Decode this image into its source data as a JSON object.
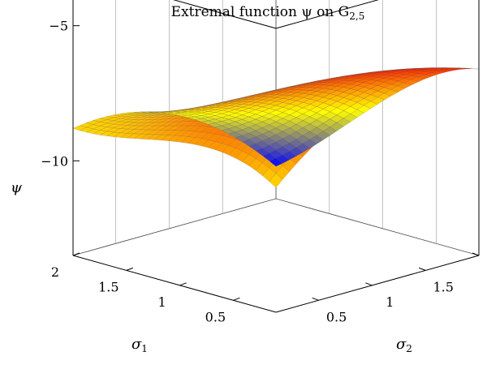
{
  "title": "Extremal function ψ on G",
  "title_sub": "2,5",
  "chart_data": {
    "type": "surface",
    "title": "Extremal function ψ on G₂,₅",
    "xlabel": "σ",
    "xlabel_sub": "1",
    "ylabel": "σ",
    "ylabel_sub": "2",
    "zlabel": "ψ",
    "xlim": [
      0.1,
      2
    ],
    "ylim": [
      0.1,
      2
    ],
    "zlim": [
      -13.5,
      -3
    ],
    "x_ticks": [
      "0.5",
      "1",
      "1.5",
      "2"
    ],
    "y_ticks": [
      "0.5",
      "1",
      "1.5",
      "2"
    ],
    "z_ticks": [
      "−10",
      "−5"
    ],
    "colormap": [
      "#0000ff",
      "#ffff00",
      "#ff0000"
    ],
    "grid": "x",
    "corner_values": [
      {
        "x": 0.1,
        "y": 0.1,
        "z": -9.2
      },
      {
        "x": 0.5,
        "y": 0.1,
        "z": -5.8
      },
      {
        "x": 2.0,
        "y": 0.1,
        "z": -12.2
      },
      {
        "x": 0.1,
        "y": 2.0,
        "z": -5.4
      },
      {
        "x": 2.0,
        "y": 2.0,
        "z": -13.0
      }
    ]
  }
}
